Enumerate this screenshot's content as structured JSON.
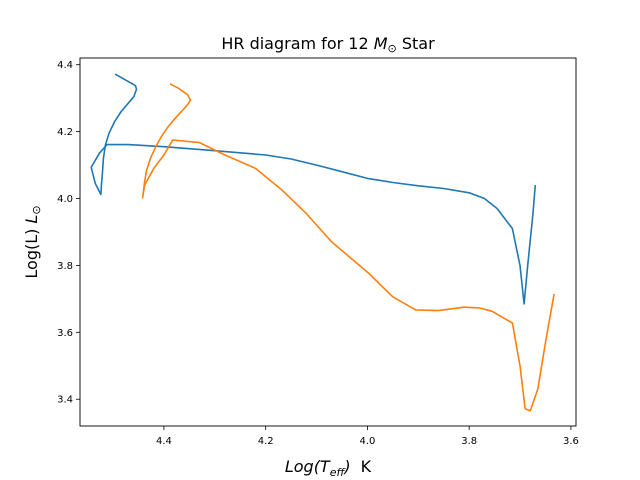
{
  "chart_data": {
    "type": "line",
    "title": "HR diagram for 12 M⊙ Star",
    "title_parts": {
      "prefix": "HR diagram for 12 ",
      "symbol": "M",
      "sub": "⊙",
      "suffix": " Star"
    },
    "xlabel": "Log(Teff) K",
    "xlabel_parts": {
      "main": "Log(T",
      "sub": "eff",
      "close": ")",
      "unit": "K"
    },
    "ylabel": "Log(L) L⊙",
    "ylabel_parts": {
      "main": "Log(L) ",
      "symbol": "L",
      "sub": "⊙"
    },
    "x_inverted": true,
    "xlim": [
      4.565,
      3.59
    ],
    "ylim": [
      3.32,
      4.42
    ],
    "xticks": [
      {
        "value": 4.4,
        "label": "4.4"
      },
      {
        "value": 4.2,
        "label": "4.2"
      },
      {
        "value": 4.0,
        "label": "4.0"
      },
      {
        "value": 3.8,
        "label": "3.8"
      },
      {
        "value": 3.6,
        "label": "3.6"
      }
    ],
    "yticks": [
      {
        "value": 3.4,
        "label": "3.4"
      },
      {
        "value": 3.6,
        "label": "3.6"
      },
      {
        "value": 3.8,
        "label": "3.8"
      },
      {
        "value": 4.0,
        "label": "4.0"
      },
      {
        "value": 4.2,
        "label": "4.2"
      },
      {
        "value": 4.4,
        "label": "4.4"
      }
    ],
    "grid": false,
    "series": [
      {
        "color": "#1f77b4",
        "points": [
          [
            4.496,
            4.372
          ],
          [
            4.48,
            4.358
          ],
          [
            4.462,
            4.343
          ],
          [
            4.456,
            4.337
          ],
          [
            4.454,
            4.327
          ],
          [
            4.459,
            4.305
          ],
          [
            4.47,
            4.285
          ],
          [
            4.484,
            4.26
          ],
          [
            4.497,
            4.23
          ],
          [
            4.508,
            4.195
          ],
          [
            4.515,
            4.16
          ],
          [
            4.519,
            4.12
          ],
          [
            4.521,
            4.075
          ],
          [
            4.523,
            4.04
          ],
          [
            4.524,
            4.012
          ],
          [
            4.535,
            4.045
          ],
          [
            4.543,
            4.093
          ],
          [
            4.527,
            4.135
          ],
          [
            4.512,
            4.161
          ],
          [
            4.47,
            4.161
          ],
          [
            4.4,
            4.155
          ],
          [
            4.3,
            4.143
          ],
          [
            4.2,
            4.13
          ],
          [
            4.15,
            4.118
          ],
          [
            4.1,
            4.1
          ],
          [
            4.05,
            4.08
          ],
          [
            4.0,
            4.06
          ],
          [
            3.95,
            4.048
          ],
          [
            3.9,
            4.038
          ],
          [
            3.85,
            4.03
          ],
          [
            3.8,
            4.017
          ],
          [
            3.77,
            4.0
          ],
          [
            3.745,
            3.97
          ],
          [
            3.715,
            3.91
          ],
          [
            3.7,
            3.8
          ],
          [
            3.692,
            3.685
          ],
          [
            3.685,
            3.8
          ],
          [
            3.675,
            3.95
          ],
          [
            3.67,
            4.04
          ]
        ]
      },
      {
        "color": "#ff7f0e",
        "points": [
          [
            4.388,
            4.343
          ],
          [
            4.372,
            4.33
          ],
          [
            4.353,
            4.31
          ],
          [
            4.348,
            4.294
          ],
          [
            4.352,
            4.284
          ],
          [
            4.362,
            4.266
          ],
          [
            4.376,
            4.243
          ],
          [
            4.392,
            4.214
          ],
          [
            4.405,
            4.185
          ],
          [
            4.416,
            4.155
          ],
          [
            4.426,
            4.122
          ],
          [
            4.434,
            4.085
          ],
          [
            4.438,
            4.05
          ],
          [
            4.44,
            4.025
          ],
          [
            4.442,
            4.002
          ],
          [
            4.438,
            4.04
          ],
          [
            4.42,
            4.09
          ],
          [
            4.4,
            4.13
          ],
          [
            4.383,
            4.175
          ],
          [
            4.33,
            4.167
          ],
          [
            4.28,
            4.13
          ],
          [
            4.22,
            4.09
          ],
          [
            4.17,
            4.028
          ],
          [
            4.12,
            3.955
          ],
          [
            4.07,
            3.87
          ],
          [
            4.0,
            3.78
          ],
          [
            3.95,
            3.706
          ],
          [
            3.905,
            3.667
          ],
          [
            3.86,
            3.665
          ],
          [
            3.81,
            3.675
          ],
          [
            3.78,
            3.673
          ],
          [
            3.755,
            3.663
          ],
          [
            3.715,
            3.628
          ],
          [
            3.7,
            3.5
          ],
          [
            3.69,
            3.372
          ],
          [
            3.68,
            3.365
          ],
          [
            3.665,
            3.43
          ],
          [
            3.65,
            3.57
          ],
          [
            3.633,
            3.715
          ]
        ]
      }
    ]
  }
}
